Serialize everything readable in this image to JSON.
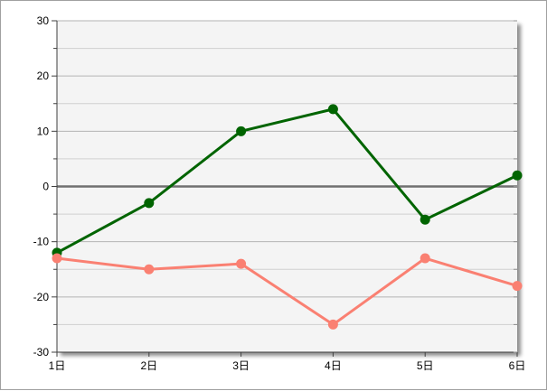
{
  "chart_data": {
    "type": "line",
    "categories": [
      "1日",
      "2日",
      "3日",
      "4日",
      "5日",
      "6日"
    ],
    "series": [
      {
        "values": [
          -12,
          -3,
          10,
          14,
          -6,
          2
        ],
        "color": "#006400"
      },
      {
        "values": [
          -13,
          -15,
          -14,
          -25,
          -13,
          -18
        ],
        "color": "#fa8072"
      }
    ],
    "ylim": [
      -30,
      30
    ],
    "yticks": [
      -30,
      -20,
      -10,
      0,
      10,
      20,
      30
    ],
    "grid": true,
    "legend": "none",
    "plot_background": "#f4f4f4",
    "zero_line_color": "#707070"
  }
}
